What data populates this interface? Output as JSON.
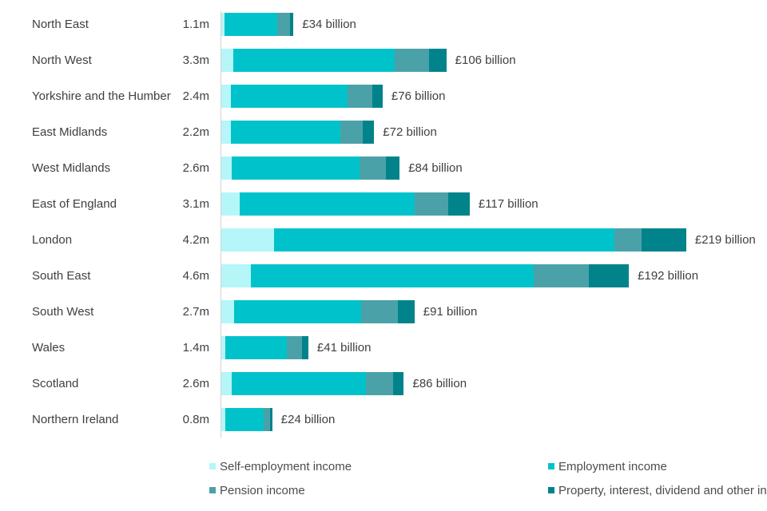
{
  "chart_data": {
    "type": "bar",
    "orientation": "horizontal",
    "stacked": true,
    "unit": "£ billion",
    "series_names": [
      "Self-employment income",
      "Employment income",
      "Pension income",
      "Property, interest, dividend and other income"
    ],
    "rows": [
      {
        "region": "North East",
        "count": "1.1m",
        "total": 34,
        "total_label": "£34 billion",
        "values": [
          1.5,
          25,
          6,
          1.5
        ]
      },
      {
        "region": "North West",
        "count": "3.3m",
        "total": 106,
        "total_label": "£106 billion",
        "values": [
          5.5,
          76,
          16.5,
          8
        ]
      },
      {
        "region": "Yorkshire and the Humber",
        "count": "2.4m",
        "total": 76,
        "total_label": "£76 billion",
        "values": [
          4.5,
          55,
          11.5,
          5
        ]
      },
      {
        "region": "East Midlands",
        "count": "2.2m",
        "total": 72,
        "total_label": "£72 billion",
        "values": [
          4.5,
          51.5,
          10.5,
          5.5
        ]
      },
      {
        "region": "West Midlands",
        "count": "2.6m",
        "total": 84,
        "total_label": "£84 billion",
        "values": [
          5,
          60,
          12.5,
          6.5
        ]
      },
      {
        "region": "East of England",
        "count": "3.1m",
        "total": 117,
        "total_label": "£117 billion",
        "values": [
          8.5,
          82.5,
          16,
          10
        ]
      },
      {
        "region": "London",
        "count": "4.2m",
        "total": 219,
        "total_label": "£219 billion",
        "values": [
          25,
          160,
          13,
          21
        ]
      },
      {
        "region": "South East",
        "count": "4.6m",
        "total": 192,
        "total_label": "£192 billion",
        "values": [
          14,
          133,
          26,
          19
        ]
      },
      {
        "region": "South West",
        "count": "2.7m",
        "total": 91,
        "total_label": "£91 billion",
        "values": [
          6,
          60,
          17,
          8
        ]
      },
      {
        "region": "Wales",
        "count": "1.4m",
        "total": 41,
        "total_label": "£41 billion",
        "values": [
          2,
          29,
          7,
          3
        ]
      },
      {
        "region": "Scotland",
        "count": "2.6m",
        "total": 86,
        "total_label": "£86 billion",
        "values": [
          5,
          63,
          13,
          5
        ]
      },
      {
        "region": "Northern Ireland",
        "count": "0.8m",
        "total": 24,
        "total_label": "£24 billion",
        "values": [
          2,
          18,
          3,
          1
        ]
      }
    ]
  },
  "legend": {
    "items": [
      {
        "label": "Self-employment income",
        "color": "#b5f6f8"
      },
      {
        "label": "Employment income",
        "color": "#00c2ca"
      },
      {
        "label": "Pension income",
        "color": "#4aa2a8"
      },
      {
        "label": "Property, interest, dividend and other income",
        "color": "#00838b"
      }
    ]
  },
  "colors": {
    "self_employment": "#b5f6f8",
    "employment": "#00c2ca",
    "pension": "#4aa2a8",
    "property_other": "#00838b",
    "axis": "#d2d2d2",
    "text": "#3f3f3f"
  }
}
